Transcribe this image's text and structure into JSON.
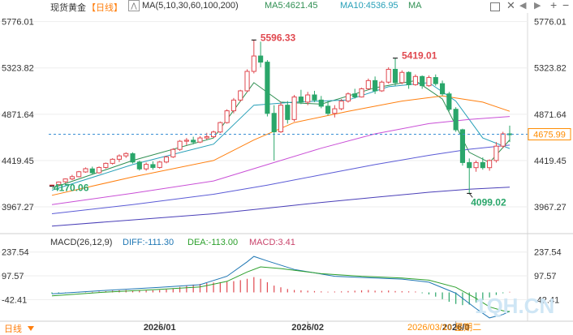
{
  "header": {
    "symbol": "现货黄金",
    "period": "【日线】",
    "ma_label": "MA(5,10,30,60,100,200)",
    "ma5_label": "MA5:4621.45",
    "ma10_label": "MA10:4536.95",
    "ma_short": "MA"
  },
  "macd_header": {
    "title": "MACD(26,12,9)",
    "diff_label": "DIFF:-111.30",
    "dea_label": "DEA:-113.00",
    "macd_label": "MACD:3.41"
  },
  "footer": {
    "period_button": "日线",
    "current_date": "2026/03/10 星期二",
    "watermark": "1QH.CN"
  },
  "icons": [
    "chart-type-icon",
    "window-icon",
    "close-icon",
    "prev-icon",
    "next-icon",
    "plus-icon",
    "minus-icon",
    "dropdown-icon"
  ],
  "colors": {
    "up": "#e0484f",
    "down": "#2aa66a",
    "ma5": "#2f8f52",
    "ma10": "#27a0b8",
    "ma30": "#ff7f0e",
    "ma60": "#c94fd6",
    "ma100": "#5b5bd6",
    "price_box": "#ff8c00",
    "diff": "#1f77b4",
    "dea": "#2ca02c"
  },
  "chart_data": {
    "type": "candlestick",
    "title": "现货黄金 日线",
    "price_axis": {
      "ticks": [
        "5776.01",
        "5323.82",
        "4871.64",
        "4419.45",
        "3967.27"
      ],
      "tick_values": [
        5776.01,
        5323.82,
        4871.64,
        4419.45,
        3967.27
      ],
      "ylim": [
        3730,
        5860
      ]
    },
    "current_price": {
      "label": "4675.99",
      "value": 4675.99
    },
    "annotations": [
      {
        "label": "5596.33",
        "value": 5596.33,
        "type": "high"
      },
      {
        "label": "5419.01",
        "value": 5419.01,
        "type": "high"
      },
      {
        "label": "4170.06",
        "value": 4170.06,
        "type": "low"
      },
      {
        "label": "4099.02",
        "value": 4099.02,
        "type": "low"
      }
    ],
    "x_ticks": [
      {
        "label": "2026/01",
        "index": 16
      },
      {
        "label": "2026/02",
        "index": 38
      },
      {
        "label": "2026/0",
        "index": 60
      }
    ],
    "candles": [
      {
        "o": 4172,
        "h": 4185,
        "l": 4170,
        "c": 4180
      },
      {
        "o": 4185,
        "h": 4215,
        "l": 4178,
        "c": 4210
      },
      {
        "o": 4212,
        "h": 4245,
        "l": 4200,
        "c": 4240
      },
      {
        "o": 4240,
        "h": 4280,
        "l": 4228,
        "c": 4262
      },
      {
        "o": 4262,
        "h": 4318,
        "l": 4255,
        "c": 4310
      },
      {
        "o": 4308,
        "h": 4352,
        "l": 4300,
        "c": 4340
      },
      {
        "o": 4338,
        "h": 4360,
        "l": 4288,
        "c": 4300
      },
      {
        "o": 4300,
        "h": 4362,
        "l": 4292,
        "c": 4352
      },
      {
        "o": 4352,
        "h": 4400,
        "l": 4340,
        "c": 4392
      },
      {
        "o": 4392,
        "h": 4442,
        "l": 4380,
        "c": 4432
      },
      {
        "o": 4432,
        "h": 4480,
        "l": 4405,
        "c": 4465
      },
      {
        "o": 4465,
        "h": 4500,
        "l": 4445,
        "c": 4488
      },
      {
        "o": 4486,
        "h": 4500,
        "l": 4390,
        "c": 4405
      },
      {
        "o": 4405,
        "h": 4418,
        "l": 4322,
        "c": 4338
      },
      {
        "o": 4338,
        "h": 4400,
        "l": 4320,
        "c": 4382
      },
      {
        "o": 4380,
        "h": 4412,
        "l": 4330,
        "c": 4352
      },
      {
        "o": 4352,
        "h": 4415,
        "l": 4340,
        "c": 4405
      },
      {
        "o": 4405,
        "h": 4462,
        "l": 4392,
        "c": 4455
      },
      {
        "o": 4455,
        "h": 4540,
        "l": 4445,
        "c": 4528
      },
      {
        "o": 4528,
        "h": 4620,
        "l": 4515,
        "c": 4608
      },
      {
        "o": 4608,
        "h": 4640,
        "l": 4570,
        "c": 4618
      },
      {
        "o": 4618,
        "h": 4652,
        "l": 4578,
        "c": 4600
      },
      {
        "o": 4600,
        "h": 4658,
        "l": 4590,
        "c": 4640
      },
      {
        "o": 4640,
        "h": 4690,
        "l": 4625,
        "c": 4652
      },
      {
        "o": 4652,
        "h": 4712,
        "l": 4642,
        "c": 4698
      },
      {
        "o": 4698,
        "h": 4800,
        "l": 4688,
        "c": 4790
      },
      {
        "o": 4790,
        "h": 4920,
        "l": 4780,
        "c": 4905
      },
      {
        "o": 4905,
        "h": 5030,
        "l": 4880,
        "c": 5010
      },
      {
        "o": 5010,
        "h": 5110,
        "l": 4995,
        "c": 5100
      },
      {
        "o": 5100,
        "h": 5310,
        "l": 5085,
        "c": 5290
      },
      {
        "o": 5290,
        "h": 5596,
        "l": 5270,
        "c": 5440
      },
      {
        "o": 5440,
        "h": 5580,
        "l": 5330,
        "c": 5380
      },
      {
        "o": 5380,
        "h": 5400,
        "l": 4850,
        "c": 4880
      },
      {
        "o": 4880,
        "h": 4960,
        "l": 4420,
        "c": 4700
      },
      {
        "o": 4700,
        "h": 4990,
        "l": 4690,
        "c": 4960
      },
      {
        "o": 4960,
        "h": 5000,
        "l": 4780,
        "c": 4820
      },
      {
        "o": 4820,
        "h": 5060,
        "l": 4800,
        "c": 5040
      },
      {
        "o": 5040,
        "h": 5110,
        "l": 4970,
        "c": 4990
      },
      {
        "o": 4990,
        "h": 5090,
        "l": 4960,
        "c": 5060
      },
      {
        "o": 5060,
        "h": 5100,
        "l": 4990,
        "c": 5010
      },
      {
        "o": 5010,
        "h": 5050,
        "l": 4930,
        "c": 4950
      },
      {
        "o": 4950,
        "h": 5000,
        "l": 4860,
        "c": 4880
      },
      {
        "o": 4880,
        "h": 4960,
        "l": 4840,
        "c": 4925
      },
      {
        "o": 4925,
        "h": 5020,
        "l": 4910,
        "c": 5000
      },
      {
        "o": 5000,
        "h": 5085,
        "l": 4985,
        "c": 5070
      },
      {
        "o": 5070,
        "h": 5120,
        "l": 5025,
        "c": 5040
      },
      {
        "o": 5040,
        "h": 5130,
        "l": 5035,
        "c": 5120
      },
      {
        "o": 5120,
        "h": 5220,
        "l": 5110,
        "c": 5200
      },
      {
        "o": 5200,
        "h": 5240,
        "l": 5070,
        "c": 5100
      },
      {
        "o": 5100,
        "h": 5200,
        "l": 5090,
        "c": 5185
      },
      {
        "o": 5185,
        "h": 5330,
        "l": 5170,
        "c": 5310
      },
      {
        "o": 5310,
        "h": 5419,
        "l": 5150,
        "c": 5180
      },
      {
        "o": 5180,
        "h": 5300,
        "l": 5165,
        "c": 5280
      },
      {
        "o": 5280,
        "h": 5290,
        "l": 5120,
        "c": 5160
      },
      {
        "o": 5160,
        "h": 5260,
        "l": 5150,
        "c": 5240
      },
      {
        "o": 5240,
        "h": 5250,
        "l": 5120,
        "c": 5150
      },
      {
        "o": 5150,
        "h": 5250,
        "l": 5140,
        "c": 5230
      },
      {
        "o": 5230,
        "h": 5260,
        "l": 5150,
        "c": 5170
      },
      {
        "o": 5170,
        "h": 5200,
        "l": 5050,
        "c": 5070
      },
      {
        "o": 5070,
        "h": 5090,
        "l": 4900,
        "c": 4920
      },
      {
        "o": 4920,
        "h": 4940,
        "l": 4700,
        "c": 4720
      },
      {
        "o": 4720,
        "h": 4730,
        "l": 4370,
        "c": 4400
      },
      {
        "o": 4400,
        "h": 4440,
        "l": 4099,
        "c": 4350
      },
      {
        "o": 4350,
        "h": 4420,
        "l": 4310,
        "c": 4400
      },
      {
        "o": 4400,
        "h": 4450,
        "l": 4330,
        "c": 4350
      },
      {
        "o": 4350,
        "h": 4430,
        "l": 4320,
        "c": 4420
      },
      {
        "o": 4420,
        "h": 4600,
        "l": 4400,
        "c": 4560
      },
      {
        "o": 4560,
        "h": 4700,
        "l": 4540,
        "c": 4680
      },
      {
        "o": 4680,
        "h": 4760,
        "l": 4600,
        "c": 4675.99
      }
    ],
    "series_ma": [
      {
        "name": "MA5",
        "value": 4621.45,
        "points": [
          [
            0,
            4150
          ],
          [
            12,
            4420
          ],
          [
            24,
            4640
          ],
          [
            30,
            5180
          ],
          [
            34,
            4990
          ],
          [
            40,
            4970
          ],
          [
            48,
            5130
          ],
          [
            54,
            5200
          ],
          [
            58,
            5020
          ],
          [
            62,
            4500
          ],
          [
            65,
            4400
          ],
          [
            68,
            4621
          ]
        ]
      },
      {
        "name": "MA10",
        "value": 4536.95,
        "points": [
          [
            0,
            4130
          ],
          [
            12,
            4380
          ],
          [
            24,
            4580
          ],
          [
            30,
            4960
          ],
          [
            36,
            4990
          ],
          [
            44,
            5010
          ],
          [
            50,
            5140
          ],
          [
            56,
            5180
          ],
          [
            60,
            5000
          ],
          [
            64,
            4640
          ],
          [
            68,
            4537
          ]
        ]
      },
      {
        "name": "MA30",
        "points": [
          [
            0,
            4080
          ],
          [
            12,
            4260
          ],
          [
            24,
            4420
          ],
          [
            30,
            4620
          ],
          [
            36,
            4790
          ],
          [
            44,
            4900
          ],
          [
            52,
            5000
          ],
          [
            58,
            5050
          ],
          [
            64,
            4990
          ],
          [
            68,
            4900
          ]
        ]
      },
      {
        "name": "MA60",
        "points": [
          [
            0,
            3990
          ],
          [
            12,
            4100
          ],
          [
            24,
            4220
          ],
          [
            32,
            4380
          ],
          [
            40,
            4540
          ],
          [
            48,
            4680
          ],
          [
            56,
            4780
          ],
          [
            62,
            4820
          ],
          [
            68,
            4850
          ]
        ]
      },
      {
        "name": "MA100",
        "points": [
          [
            0,
            3900
          ],
          [
            12,
            3990
          ],
          [
            24,
            4090
          ],
          [
            32,
            4180
          ],
          [
            40,
            4280
          ],
          [
            48,
            4380
          ],
          [
            56,
            4470
          ],
          [
            62,
            4530
          ],
          [
            68,
            4570
          ]
        ]
      },
      {
        "name": "MA200",
        "points": [
          [
            0,
            3780
          ],
          [
            12,
            3840
          ],
          [
            24,
            3900
          ],
          [
            32,
            3955
          ],
          [
            40,
            4010
          ],
          [
            48,
            4060
          ],
          [
            56,
            4110
          ],
          [
            62,
            4140
          ],
          [
            68,
            4160
          ]
        ]
      }
    ],
    "macd": {
      "axis_ticks": [
        "237.54",
        "97.57",
        "-42.41"
      ],
      "tick_values": [
        237.54,
        97.57,
        -42.41
      ],
      "ylim": [
        -160,
        260
      ],
      "diff": -111.3,
      "dea": -113.0,
      "macd": 3.41,
      "diff_points": [
        [
          0,
          -8
        ],
        [
          8,
          12
        ],
        [
          16,
          30
        ],
        [
          22,
          45
        ],
        [
          26,
          95
        ],
        [
          29,
          180
        ],
        [
          30,
          212
        ],
        [
          32,
          185
        ],
        [
          36,
          135
        ],
        [
          42,
          95
        ],
        [
          48,
          85
        ],
        [
          52,
          78
        ],
        [
          56,
          60
        ],
        [
          60,
          -5
        ],
        [
          63,
          -95
        ],
        [
          65,
          -150
        ],
        [
          67,
          -130
        ],
        [
          68,
          -111
        ]
      ],
      "dea_points": [
        [
          0,
          -20
        ],
        [
          8,
          2
        ],
        [
          16,
          18
        ],
        [
          22,
          32
        ],
        [
          26,
          65
        ],
        [
          29,
          120
        ],
        [
          31,
          150
        ],
        [
          34,
          140
        ],
        [
          40,
          110
        ],
        [
          46,
          95
        ],
        [
          52,
          85
        ],
        [
          56,
          72
        ],
        [
          60,
          30
        ],
        [
          63,
          -35
        ],
        [
          65,
          -85
        ],
        [
          67,
          -108
        ],
        [
          68,
          -113
        ]
      ],
      "hist": [
        -8,
        -6,
        -5,
        -3,
        -1,
        2,
        3,
        5,
        7,
        10,
        12,
        14,
        12,
        10,
        11,
        12,
        14,
        18,
        24,
        32,
        40,
        46,
        50,
        55,
        58,
        60,
        62,
        66,
        72,
        80,
        90,
        80,
        60,
        40,
        30,
        20,
        14,
        12,
        10,
        8,
        6,
        4,
        5,
        6,
        8,
        10,
        12,
        14,
        10,
        9,
        11,
        8,
        7,
        6,
        5,
        -5,
        -12,
        -25,
        -40,
        -55,
        -68,
        -75,
        -72,
        -60,
        -45,
        -30,
        -15,
        -5,
        3.41
      ]
    }
  }
}
